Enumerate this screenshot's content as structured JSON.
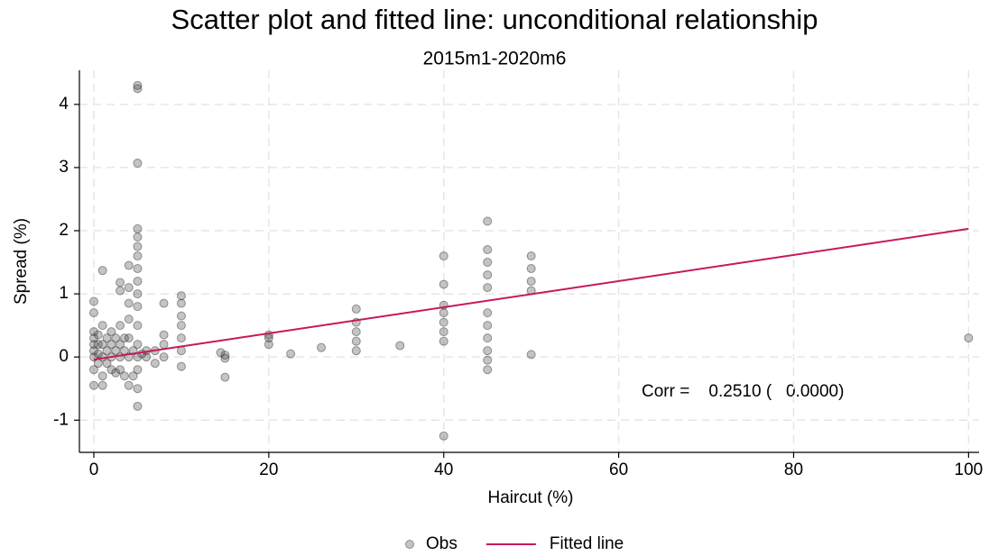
{
  "chart_data": {
    "type": "scatter",
    "title": "Scatter plot and fitted line: unconditional relationship",
    "subtitle": "2015m1-2020m6",
    "x_label": "Haircut (%)",
    "y_label": "Spread (%)",
    "annotation": "Corr =    0.2510 (   0.0000)",
    "xlim": [
      -1.65,
      101.2
    ],
    "ylim": [
      -1.51,
      4.54
    ],
    "xticks": [
      0,
      20,
      40,
      60,
      80,
      100
    ],
    "yticks": [
      -1,
      0,
      1,
      2,
      3,
      4
    ],
    "grid": true,
    "legend": "bottom",
    "series": [
      {
        "name": "Obs",
        "type": "scatter",
        "color": "#3a3a3a",
        "x": [
          0,
          0,
          0,
          0,
          0,
          0,
          0,
          0,
          0,
          0.5,
          0.5,
          0.5,
          0.5,
          1,
          1,
          1,
          1,
          1,
          1,
          1.5,
          1.5,
          1.5,
          2,
          2,
          2,
          2,
          2.5,
          2.5,
          2.5,
          3,
          3,
          3,
          3,
          3,
          3,
          3.5,
          3.5,
          3.5,
          4,
          4,
          4,
          4,
          4,
          4,
          4,
          4.5,
          4.5,
          5,
          5,
          5,
          5,
          5,
          5,
          5,
          5,
          5,
          5,
          5,
          5,
          5,
          5,
          5,
          5,
          5,
          5.5,
          6,
          6,
          7,
          7,
          8,
          8,
          8,
          8,
          10,
          10,
          10,
          10,
          10,
          10,
          10,
          14.5,
          15,
          15,
          15,
          20,
          20,
          20,
          22.5,
          26,
          30,
          30,
          30,
          30,
          30,
          35,
          40,
          40,
          40,
          40,
          40,
          40,
          40,
          40,
          45,
          45,
          45,
          45,
          45,
          45,
          45,
          45,
          45,
          45,
          45,
          50,
          50,
          50,
          50,
          50,
          100
        ],
        "values": [
          -0.45,
          -0.2,
          0,
          0.1,
          0.2,
          0.3,
          0.4,
          0.7,
          0.88,
          -0.1,
          0.05,
          0.2,
          0.35,
          -0.45,
          -0.3,
          0,
          0.2,
          0.5,
          1.37,
          -0.1,
          0.1,
          0.3,
          -0.2,
          0,
          0.2,
          0.4,
          -0.25,
          0.1,
          0.3,
          -0.2,
          0,
          0.2,
          0.5,
          1.05,
          1.18,
          -0.3,
          0.1,
          0.3,
          -0.45,
          0,
          0.3,
          0.6,
          0.85,
          1.1,
          1.45,
          -0.3,
          0.1,
          -0.78,
          -0.5,
          -0.2,
          0,
          0.2,
          0.5,
          0.8,
          1.0,
          1.2,
          1.4,
          1.6,
          1.75,
          1.9,
          2.03,
          3.07,
          4.25,
          4.3,
          0.05,
          0.1,
          0,
          -0.1,
          0.1,
          0.35,
          0.2,
          0.85,
          0,
          -0.15,
          0.1,
          0.3,
          0.5,
          0.65,
          0.85,
          0.97,
          0.07,
          -0.32,
          -0.02,
          0.03,
          0.2,
          0.3,
          0.35,
          0.05,
          0.15,
          0.1,
          0.25,
          0.4,
          0.55,
          0.76,
          0.18,
          -1.25,
          0.25,
          0.4,
          0.55,
          0.7,
          0.82,
          1.15,
          1.6,
          -0.2,
          -0.05,
          0.1,
          0.3,
          0.5,
          0.7,
          1.1,
          1.3,
          1.5,
          1.7,
          2.15,
          0.04,
          1.05,
          1.2,
          1.4,
          1.6,
          0.3
        ]
      },
      {
        "name": "Fitted line",
        "type": "line",
        "color": "#c8175d",
        "x": [
          0,
          100
        ],
        "values": [
          -0.04,
          2.03
        ]
      }
    ]
  }
}
